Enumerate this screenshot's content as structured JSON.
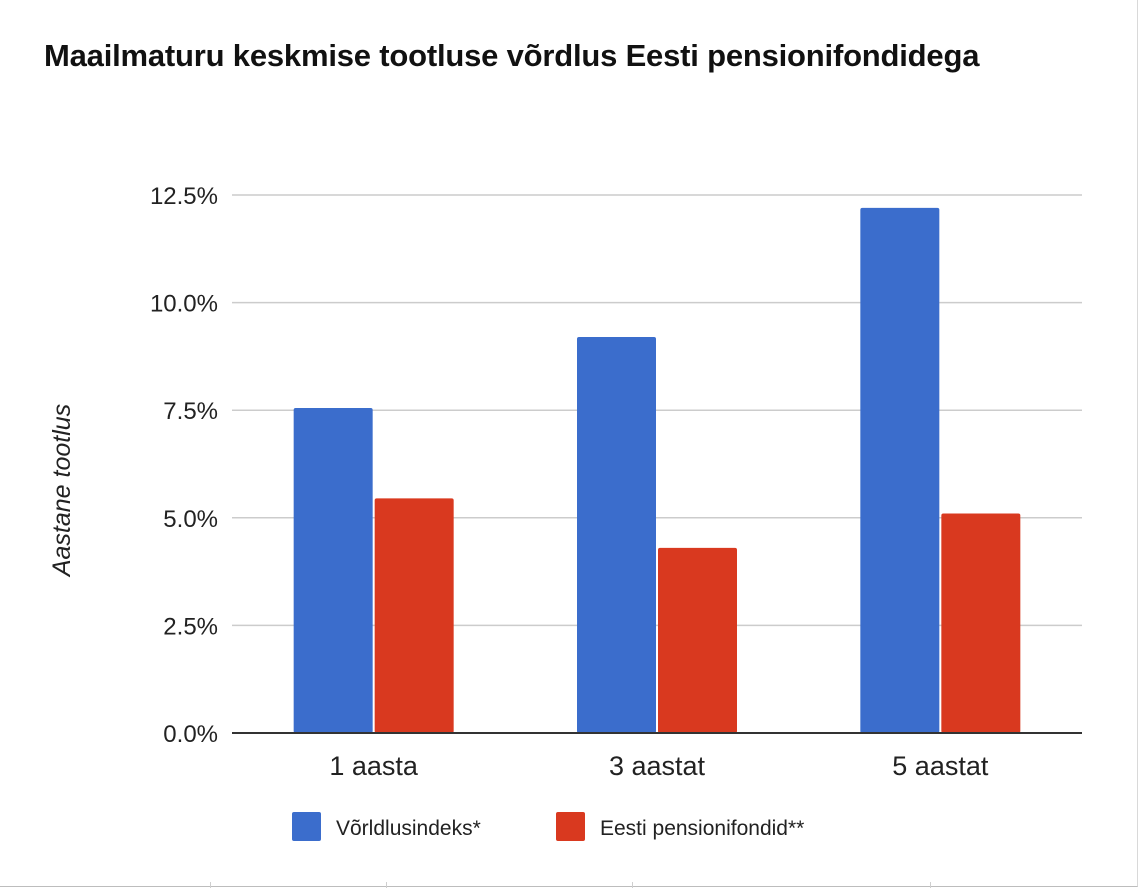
{
  "chart_data": {
    "type": "bar",
    "title": "Maailmaturu keskmise tootluse võrdlus Eesti pensionifondidega",
    "ylabel": "Aastane tootlus",
    "xlabel": "",
    "categories": [
      "1 aasta",
      "3 aastat",
      "5 aastat"
    ],
    "series": [
      {
        "name": "Võrldlusindeks*",
        "color": "#3b6dcc",
        "values": [
          7.55,
          9.2,
          12.2
        ]
      },
      {
        "name": "Eesti pensionifondid**",
        "color": "#d9391f",
        "values": [
          5.45,
          4.3,
          5.1
        ]
      }
    ],
    "ylim": [
      0,
      12.5
    ],
    "yticks": [
      0,
      2.5,
      5,
      7.5,
      10,
      12.5
    ],
    "ytick_labels": [
      "0.0%",
      "2.5%",
      "5.0%",
      "7.5%",
      "10.0%",
      "12.5%"
    ],
    "grid": true,
    "legend": "bottom"
  }
}
